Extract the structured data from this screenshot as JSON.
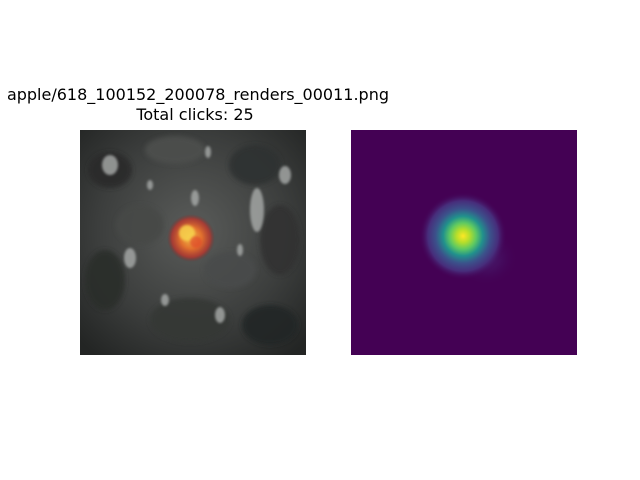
{
  "figure": {
    "title_line1": "apple/618_100152_200078_renders_00011.png",
    "title_line2": "Total clicks: 25"
  },
  "panels": {
    "left": {
      "content": "photo with highlighted apple heatmap overlay",
      "background_color": "#3a3c3b",
      "highlight_color": "#e86a2a"
    },
    "right": {
      "content": "heatmap",
      "colormap": "viridis",
      "background_color": "#440154",
      "peak_color": "#fde725"
    }
  }
}
